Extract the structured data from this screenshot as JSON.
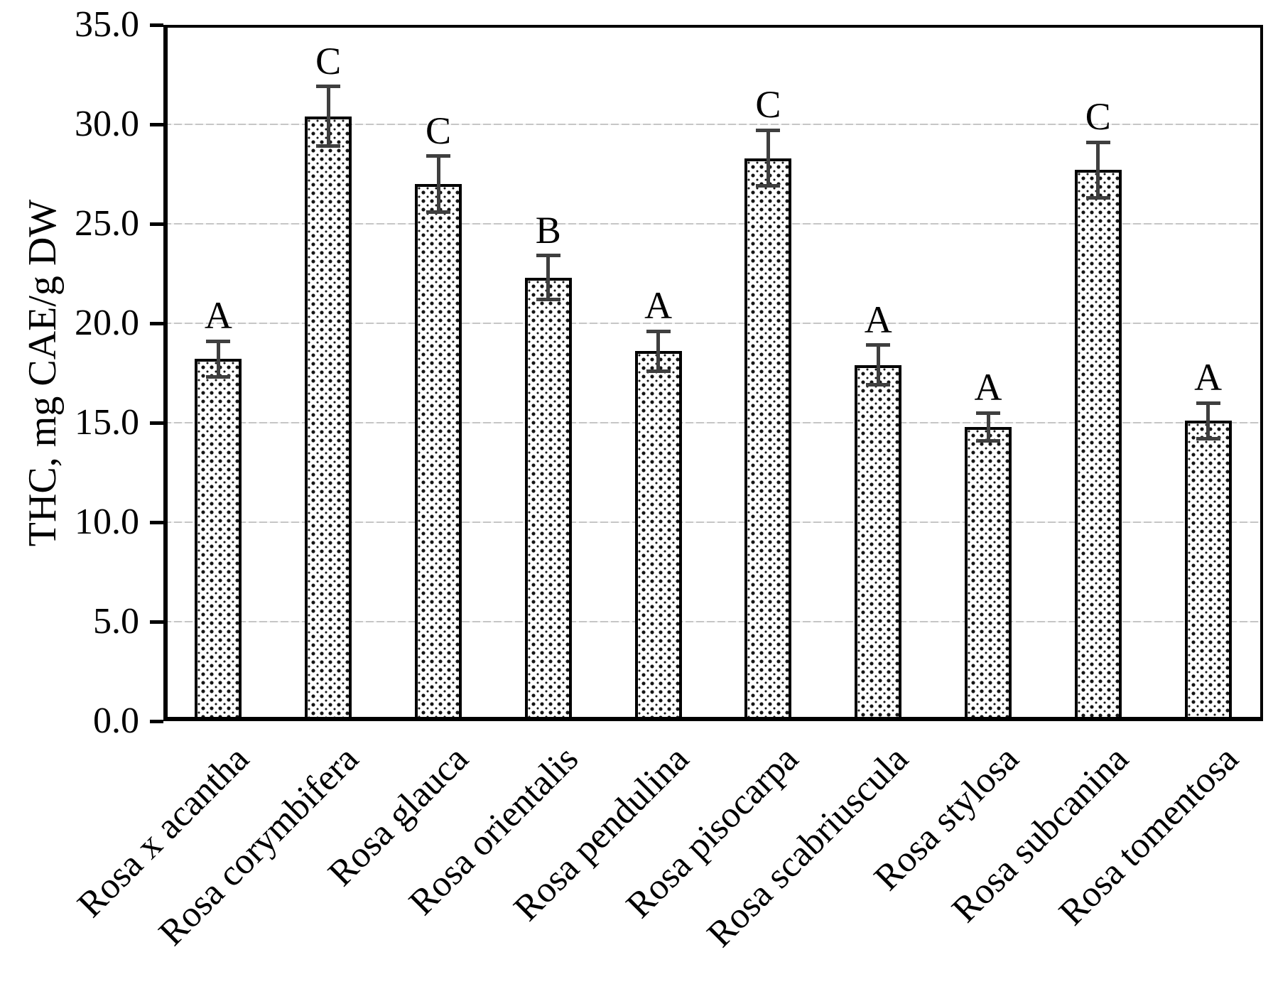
{
  "figure": {
    "background_color": "#ffffff",
    "text_color": "#000000"
  },
  "chart_data": {
    "type": "bar",
    "title": "",
    "xlabel": "",
    "ylabel": "THC, mg CAE/g DW",
    "ylim": [
      0,
      35
    ],
    "grid": "horizontal",
    "legend": "none",
    "y_ticks": [
      0,
      5,
      10,
      15,
      20,
      25,
      30,
      35
    ],
    "y_tick_labels": [
      "0.0",
      "5.0",
      "10.0",
      "15.0",
      "20.0",
      "25.0",
      "30.0",
      "35.0"
    ],
    "categories": [
      "Rosa x acantha",
      "Rosa corymbifera",
      "Rosa glauca",
      "Rosa orientalis",
      "Rosa pendulina",
      "Rosa pisocarpa",
      "Rosa scabriuscula",
      "Rosa stylosa",
      "Rosa subcanina",
      "Rosa tomentosa"
    ],
    "series": [
      {
        "name": "THC",
        "values": [
          18.2,
          30.4,
          27.0,
          22.3,
          18.6,
          28.3,
          17.9,
          14.8,
          27.7,
          15.1
        ],
        "errors": [
          0.9,
          1.5,
          1.4,
          1.1,
          1.0,
          1.4,
          1.0,
          0.7,
          1.4,
          0.9
        ],
        "significance_letters": [
          "A",
          "C",
          "C",
          "B",
          "A",
          "C",
          "A",
          "A",
          "C",
          "A"
        ]
      }
    ],
    "style": {
      "bar_fill": "#ffffff",
      "bar_pattern_dot": "#141414",
      "bar_border": "#000000",
      "error_bar_color": "#3f3f3f",
      "gridline_color": "#c6c6c6",
      "axis_color": "#000000"
    }
  }
}
